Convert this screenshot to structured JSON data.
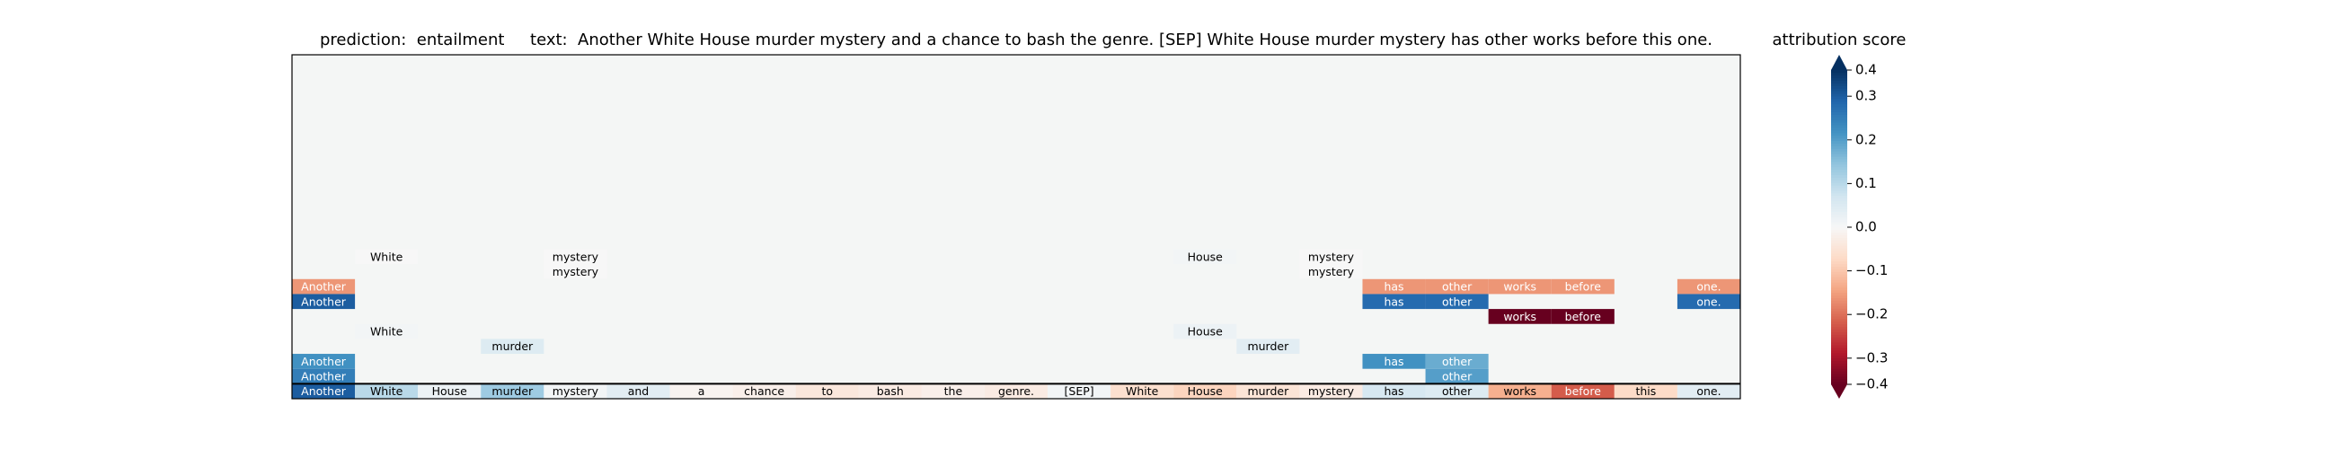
{
  "chart_data": {
    "type": "heatmap",
    "title": "prediction:  entailment     text:  Another White House murder mystery and a chance to bash the genre. [SEP] White House murder mystery has other works before this one.",
    "colorbar_label": "attribution score",
    "colormap": "RdBu",
    "clim": [
      -0.36,
      0.36
    ],
    "cticks": [
      {
        "value": 0.36,
        "label": "0.4"
      },
      0.3,
      0.2,
      0.1,
      {
        "value": 0,
        "label": "0.0"
      },
      {
        "value": -0.1,
        "label": "−0.1"
      },
      {
        "value": -0.2,
        "label": "−0.2"
      },
      {
        "value": -0.3,
        "label": "−0.3"
      },
      {
        "value": -0.36,
        "label": "−0.4"
      }
    ],
    "tokens": [
      "Another",
      "White",
      "House",
      "murder",
      "mystery",
      "and",
      "a",
      "chance",
      "to",
      "bash",
      "the",
      "genre.",
      "[SEP]",
      "White",
      "House",
      "murder",
      "mystery",
      "has",
      "other",
      "works",
      "before",
      "this",
      "one."
    ],
    "rows": [
      {
        "values": [
          null,
          0.0,
          null,
          null,
          0.0,
          null,
          null,
          null,
          null,
          null,
          null,
          null,
          null,
          null,
          0.01,
          null,
          0.0,
          null,
          null,
          null,
          null,
          null,
          null
        ]
      },
      {
        "values": [
          null,
          null,
          null,
          null,
          0.0,
          null,
          null,
          null,
          null,
          null,
          null,
          null,
          null,
          null,
          null,
          null,
          0.0,
          null,
          null,
          null,
          null,
          null,
          null
        ]
      },
      {
        "values": [
          -0.16,
          null,
          null,
          null,
          null,
          null,
          null,
          null,
          null,
          null,
          null,
          null,
          null,
          null,
          null,
          null,
          null,
          -0.16,
          -0.16,
          -0.16,
          -0.16,
          null,
          -0.16
        ]
      },
      {
        "values": [
          0.3,
          null,
          null,
          null,
          null,
          null,
          null,
          null,
          null,
          null,
          null,
          null,
          null,
          null,
          null,
          null,
          null,
          0.28,
          0.28,
          null,
          null,
          null,
          0.28
        ]
      },
      {
        "values": [
          null,
          null,
          null,
          null,
          null,
          null,
          null,
          null,
          null,
          null,
          null,
          null,
          null,
          null,
          null,
          null,
          null,
          null,
          null,
          -0.36,
          -0.36,
          null,
          null
        ]
      },
      {
        "values": [
          null,
          0.01,
          null,
          null,
          null,
          null,
          null,
          null,
          null,
          null,
          null,
          null,
          null,
          null,
          0.02,
          null,
          null,
          null,
          null,
          null,
          null,
          null,
          null
        ]
      },
      {
        "values": [
          null,
          null,
          null,
          0.05,
          null,
          null,
          null,
          null,
          null,
          null,
          null,
          null,
          null,
          null,
          null,
          0.04,
          null,
          null,
          null,
          null,
          null,
          null,
          null
        ]
      },
      {
        "values": [
          0.22,
          null,
          null,
          null,
          null,
          null,
          null,
          null,
          null,
          null,
          null,
          null,
          null,
          null,
          null,
          null,
          null,
          0.22,
          0.18,
          null,
          null,
          null,
          null
        ]
      },
      {
        "values": [
          0.25,
          null,
          null,
          null,
          null,
          null,
          null,
          null,
          null,
          null,
          null,
          null,
          null,
          null,
          null,
          null,
          null,
          null,
          0.2,
          null,
          null,
          null,
          null
        ]
      },
      {
        "values": [
          0.3,
          0.1,
          0.02,
          0.13,
          0.01,
          0.04,
          -0.01,
          -0.02,
          -0.04,
          -0.03,
          -0.02,
          -0.03,
          0.01,
          -0.06,
          -0.08,
          -0.05,
          -0.03,
          0.06,
          0.05,
          -0.13,
          -0.22,
          -0.07,
          0.04
        ]
      }
    ]
  }
}
